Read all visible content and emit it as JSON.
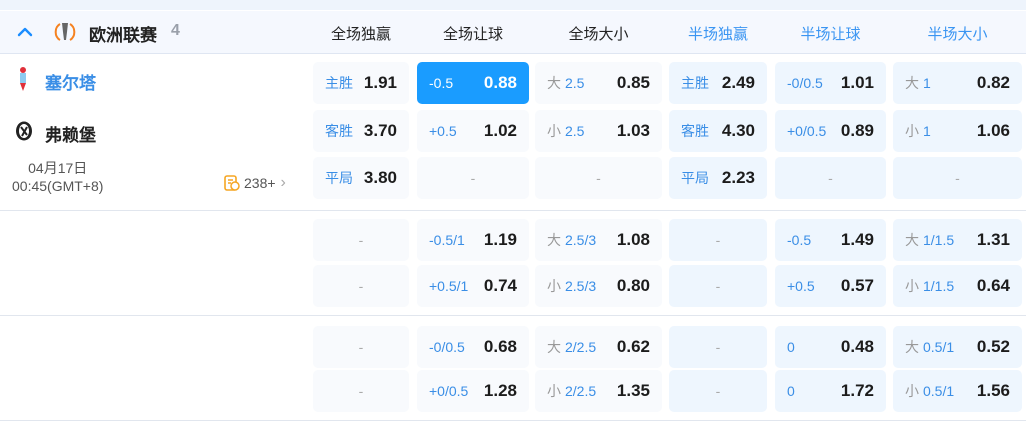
{
  "league": {
    "name": "欧洲联赛",
    "count": "4"
  },
  "columns": [
    "全场独赢",
    "全场让球",
    "全场大小",
    "半场独赢",
    "半场让球",
    "半场大小"
  ],
  "match": {
    "home": "塞尔塔",
    "away": "弗赖堡",
    "date": "04月17日",
    "time": "00:45(GMT+8)",
    "more_markets": "238+"
  },
  "colors": {
    "accent": "#1a9cff",
    "home_team": "#3a8ee6",
    "line": "#3a8ee6"
  },
  "groups": [
    {
      "rows": [
        [
          {
            "pre": "",
            "line": "主胜",
            "odds": "1.91"
          },
          {
            "pre": "",
            "line": "-0.5",
            "odds": "0.88",
            "selected": true
          },
          {
            "pre": "大",
            "line": "2.5",
            "odds": "0.85"
          },
          {
            "pre": "",
            "line": "主胜",
            "odds": "2.49"
          },
          {
            "pre": "",
            "line": "-0/0.5",
            "odds": "1.01"
          },
          {
            "pre": "大",
            "line": "1",
            "odds": "0.82"
          }
        ],
        [
          {
            "pre": "",
            "line": "客胜",
            "odds": "3.70"
          },
          {
            "pre": "",
            "line": "+0.5",
            "odds": "1.02"
          },
          {
            "pre": "小",
            "line": "2.5",
            "odds": "1.03"
          },
          {
            "pre": "",
            "line": "客胜",
            "odds": "4.30"
          },
          {
            "pre": "",
            "line": "+0/0.5",
            "odds": "0.89"
          },
          {
            "pre": "小",
            "line": "1",
            "odds": "1.06"
          }
        ],
        [
          {
            "pre": "",
            "line": "平局",
            "odds": "3.80"
          },
          {
            "empty": "-"
          },
          {
            "empty": "-"
          },
          {
            "pre": "",
            "line": "平局",
            "odds": "2.23"
          },
          {
            "empty": "-"
          },
          {
            "empty": "-"
          }
        ]
      ]
    },
    {
      "rows": [
        [
          {
            "empty": "-"
          },
          {
            "pre": "",
            "line": "-0.5/1",
            "odds": "1.19"
          },
          {
            "pre": "大",
            "line": "2.5/3",
            "odds": "1.08"
          },
          {
            "empty": "-"
          },
          {
            "pre": "",
            "line": "-0.5",
            "odds": "1.49"
          },
          {
            "pre": "大",
            "line": "1/1.5",
            "odds": "1.31"
          }
        ],
        [
          {
            "empty": "-"
          },
          {
            "pre": "",
            "line": "+0.5/1",
            "odds": "0.74"
          },
          {
            "pre": "小",
            "line": "2.5/3",
            "odds": "0.80"
          },
          {
            "empty": "-"
          },
          {
            "pre": "",
            "line": "+0.5",
            "odds": "0.57"
          },
          {
            "pre": "小",
            "line": "1/1.5",
            "odds": "0.64"
          }
        ]
      ]
    },
    {
      "rows": [
        [
          {
            "empty": "-"
          },
          {
            "pre": "",
            "line": "-0/0.5",
            "odds": "0.68"
          },
          {
            "pre": "大",
            "line": "2/2.5",
            "odds": "0.62"
          },
          {
            "empty": "-"
          },
          {
            "pre": "",
            "line": "0",
            "odds": "0.48"
          },
          {
            "pre": "大",
            "line": "0.5/1",
            "odds": "0.52"
          }
        ],
        [
          {
            "empty": "-"
          },
          {
            "pre": "",
            "line": "+0/0.5",
            "odds": "1.28"
          },
          {
            "pre": "小",
            "line": "2/2.5",
            "odds": "1.35"
          },
          {
            "empty": "-"
          },
          {
            "pre": "",
            "line": "0",
            "odds": "1.72"
          },
          {
            "pre": "小",
            "line": "0.5/1",
            "odds": "1.56"
          }
        ]
      ]
    }
  ]
}
